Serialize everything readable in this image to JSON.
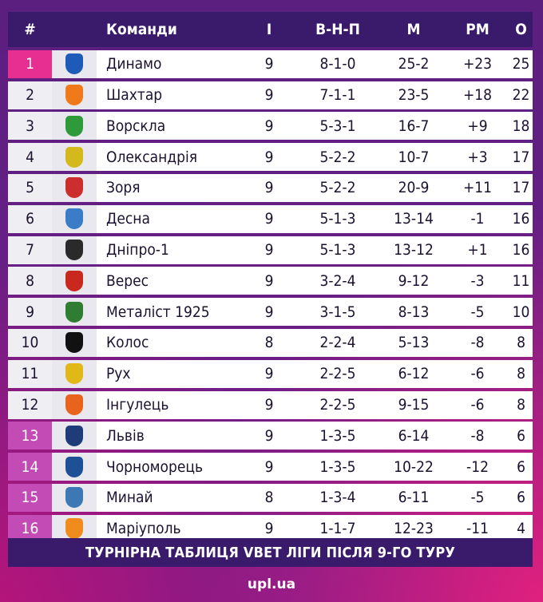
{
  "headers": {
    "pos": "#",
    "team": "Команди",
    "games": "І",
    "wdl": "В-Н-П",
    "goals": "М",
    "diff": "РМ",
    "points": "О"
  },
  "rows": [
    {
      "pos": "1",
      "team": "Динамо",
      "games": "9",
      "wdl": "8-1-0",
      "goals": "25-2",
      "diff": "+23",
      "points": "25",
      "status": "top",
      "logo": "dynamo-logo",
      "color": "#1e5bb8"
    },
    {
      "pos": "2",
      "team": "Шахтар",
      "games": "9",
      "wdl": "7-1-1",
      "goals": "23-5",
      "diff": "+18",
      "points": "22",
      "status": "",
      "logo": "shakhtar-logo",
      "color": "#f07a1a"
    },
    {
      "pos": "3",
      "team": "Ворскла",
      "games": "9",
      "wdl": "5-3-1",
      "goals": "16-7",
      "diff": "+9",
      "points": "18",
      "status": "",
      "logo": "vorskla-logo",
      "color": "#2e9a3a"
    },
    {
      "pos": "4",
      "team": "Олександрія",
      "games": "9",
      "wdl": "5-2-2",
      "goals": "10-7",
      "diff": "+3",
      "points": "17",
      "status": "",
      "logo": "oleksandriya-logo",
      "color": "#d4b91c"
    },
    {
      "pos": "5",
      "team": "Зоря",
      "games": "9",
      "wdl": "5-2-2",
      "goals": "20-9",
      "diff": "+11",
      "points": "17",
      "status": "",
      "logo": "zorya-logo",
      "color": "#cc2d2d"
    },
    {
      "pos": "6",
      "team": "Десна",
      "games": "9",
      "wdl": "5-1-3",
      "goals": "13-14",
      "diff": "-1",
      "points": "16",
      "status": "",
      "logo": "desna-logo",
      "color": "#3a7cc8"
    },
    {
      "pos": "7",
      "team": "Дніпро-1",
      "games": "9",
      "wdl": "5-1-3",
      "goals": "13-12",
      "diff": "+1",
      "points": "16",
      "status": "",
      "logo": "dnipro-1-logo",
      "color": "#2a2a2a"
    },
    {
      "pos": "8",
      "team": "Верес",
      "games": "9",
      "wdl": "3-2-4",
      "goals": "9-12",
      "diff": "-3",
      "points": "11",
      "status": "",
      "logo": "veres-logo",
      "color": "#c8281e"
    },
    {
      "pos": "9",
      "team": "Металіст 1925",
      "games": "9",
      "wdl": "3-1-5",
      "goals": "8-13",
      "diff": "-5",
      "points": "10",
      "status": "",
      "logo": "metalist-1925-logo",
      "color": "#2e7d32"
    },
    {
      "pos": "10",
      "team": "Колос",
      "games": "8",
      "wdl": "2-2-4",
      "goals": "5-13",
      "diff": "-8",
      "points": "8",
      "status": "",
      "logo": "kolos-logo",
      "color": "#111111"
    },
    {
      "pos": "11",
      "team": "Рух",
      "games": "9",
      "wdl": "2-2-5",
      "goals": "6-12",
      "diff": "-6",
      "points": "8",
      "status": "",
      "logo": "rukh-logo",
      "color": "#e0b818"
    },
    {
      "pos": "12",
      "team": "Інгулець",
      "games": "9",
      "wdl": "2-2-5",
      "goals": "9-15",
      "diff": "-6",
      "points": "8",
      "status": "",
      "logo": "inhulets-logo",
      "color": "#e8641c"
    },
    {
      "pos": "13",
      "team": "Львів",
      "games": "9",
      "wdl": "1-3-5",
      "goals": "6-14",
      "diff": "-8",
      "points": "6",
      "status": "relegation",
      "logo": "lviv-logo",
      "color": "#1e3c78"
    },
    {
      "pos": "14",
      "team": "Чорноморець",
      "games": "9",
      "wdl": "1-3-5",
      "goals": "10-22",
      "diff": "-12",
      "points": "6",
      "status": "relegation",
      "logo": "chornomorets-logo",
      "color": "#1e5096"
    },
    {
      "pos": "15",
      "team": "Минай",
      "games": "8",
      "wdl": "1-3-4",
      "goals": "6-11",
      "diff": "-5",
      "points": "6",
      "status": "relegation",
      "logo": "mynai-logo",
      "color": "#3c78b4"
    },
    {
      "pos": "16",
      "team": "Маріуполь",
      "games": "9",
      "wdl": "1-1-7",
      "goals": "12-23",
      "diff": "-11",
      "points": "4",
      "status": "relegation",
      "logo": "mariupol-logo",
      "color": "#f08c1e"
    }
  ],
  "footer": "ТУРНІРНА ТАБЛИЦЯ VBET ЛІГИ ПІСЛЯ 9-ГО ТУРУ",
  "brand": "upl.ua"
}
